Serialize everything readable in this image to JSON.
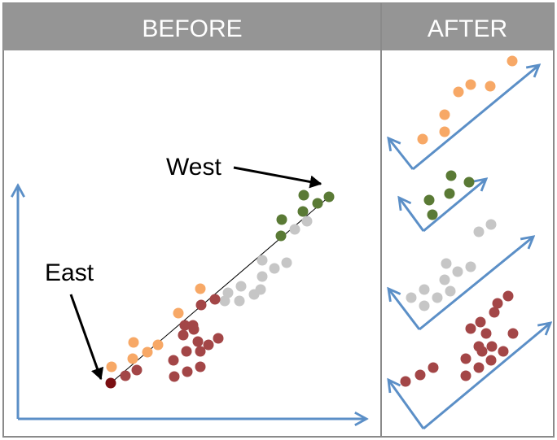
{
  "panels": {
    "before": {
      "title": "BEFORE"
    },
    "after": {
      "title": "AFTER"
    }
  },
  "labels": {
    "east": "East",
    "west": "West"
  },
  "colors": {
    "header_bg": "#959595",
    "border": "#8a8a8a",
    "axis": "#5b8fc7",
    "orange": "#f7a866",
    "green": "#5a7a35",
    "gray": "#c6c6c6",
    "red": "#a34647",
    "dark_red": "#7a0f12",
    "arrow": "#000000"
  },
  "chart_data": {
    "type": "scatter",
    "series": [
      {
        "color_key": "orange"
      },
      {
        "color_key": "green"
      },
      {
        "color_key": "gray"
      },
      {
        "color_key": "red"
      }
    ]
  }
}
